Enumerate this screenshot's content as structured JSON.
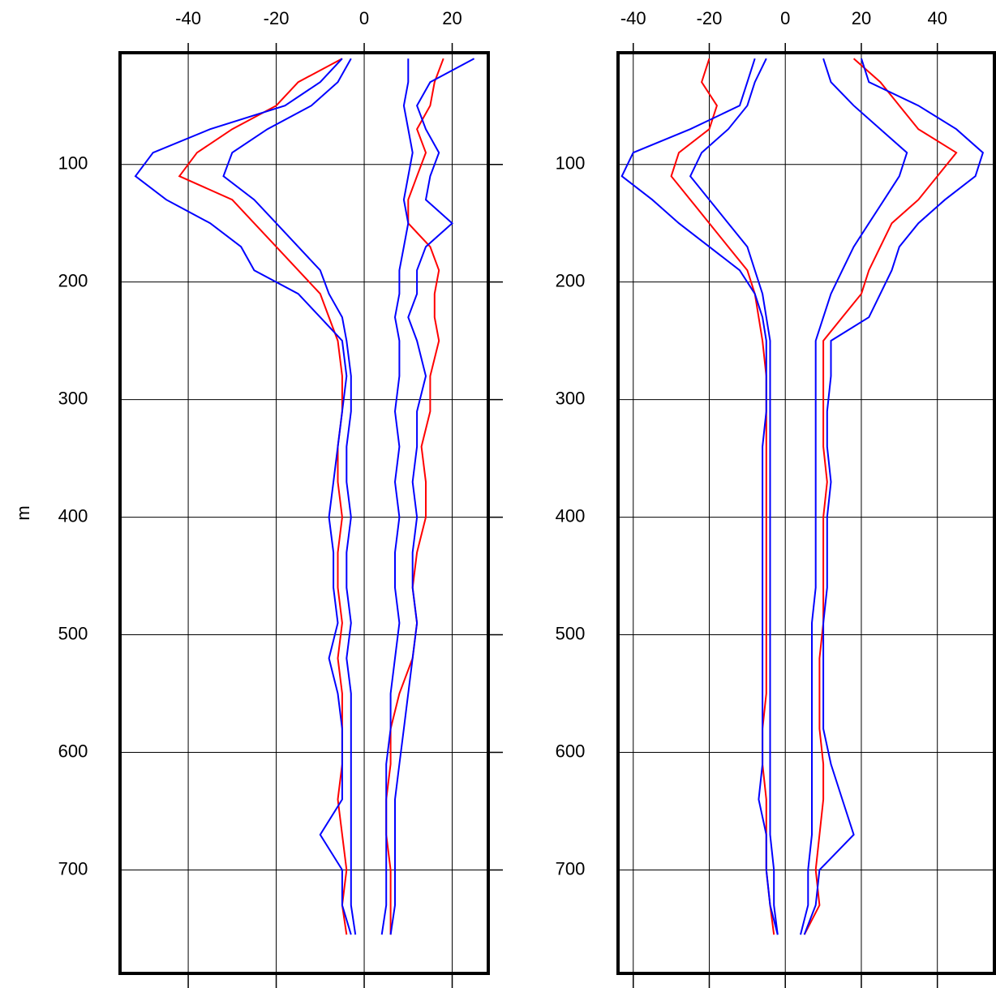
{
  "chart_data": [
    {
      "type": "line",
      "y_label": "m",
      "xlim": [
        -55.5,
        28.2
      ],
      "xticks": [
        -40,
        -20,
        0,
        20
      ],
      "ylim": [
        5,
        788
      ],
      "yticks": [
        100,
        200,
        300,
        400,
        500,
        600,
        700
      ],
      "y_inverted": true,
      "grid": true,
      "y": [
        10,
        30,
        50,
        70,
        90,
        110,
        130,
        150,
        170,
        190,
        210,
        230,
        250,
        280,
        310,
        340,
        370,
        400,
        430,
        460,
        490,
        520,
        550,
        580,
        610,
        640,
        670,
        700,
        730,
        755
      ],
      "series": [
        {
          "color": "#ff0000",
          "values": [
            -5,
            -15,
            -20,
            -30,
            -38,
            -42,
            -30,
            -25,
            -20,
            -15,
            -10,
            -8,
            -6,
            -5,
            -5,
            -6,
            -6,
            -5,
            -6,
            -6,
            -5,
            -6,
            -5,
            -5,
            -5,
            -6,
            -5,
            -4,
            -5,
            -4
          ]
        },
        {
          "color": "#ff0000",
          "values": [
            18,
            16,
            15,
            12,
            14,
            12,
            10,
            10,
            15,
            17,
            16,
            16,
            17,
            15,
            15,
            13,
            14,
            14,
            12,
            11,
            12,
            11,
            8,
            6,
            6,
            5,
            5,
            6,
            6,
            6
          ]
        },
        {
          "color": "#0000ff",
          "values": [
            -5,
            -10,
            -18,
            -35,
            -48,
            -52,
            -45,
            -35,
            -28,
            -25,
            -15,
            -10,
            -5,
            -4,
            -5,
            -6,
            -7,
            -8,
            -7,
            -7,
            -6,
            -8,
            -6,
            -5,
            -5,
            -5,
            -10,
            -5,
            -5,
            -3
          ]
        },
        {
          "color": "#0000ff",
          "values": [
            25,
            15,
            12,
            14,
            17,
            15,
            14,
            20,
            14,
            12,
            12,
            10,
            12,
            14,
            12,
            12,
            11,
            12,
            11,
            11,
            12,
            11,
            10,
            9,
            8,
            7,
            7,
            7,
            7,
            6
          ]
        },
        {
          "color": "#0000ff",
          "values": [
            -3,
            -6,
            -12,
            -22,
            -30,
            -32,
            -25,
            -20,
            -15,
            -10,
            -8,
            -5,
            -4,
            -3,
            -3,
            -4,
            -4,
            -3,
            -4,
            -4,
            -3,
            -4,
            -3,
            -3,
            -3,
            -3,
            -3,
            -3,
            -3,
            -2
          ]
        },
        {
          "color": "#0000ff",
          "values": [
            10,
            10,
            9,
            10,
            11,
            10,
            9,
            10,
            9,
            8,
            8,
            7,
            8,
            8,
            7,
            8,
            7,
            8,
            7,
            7,
            8,
            7,
            6,
            6,
            5,
            5,
            5,
            5,
            5,
            4
          ]
        }
      ]
    },
    {
      "type": "line",
      "xlim": [
        -44,
        55
      ],
      "xticks": [
        -40,
        -20,
        0,
        20,
        40
      ],
      "ylim": [
        5,
        788
      ],
      "yticks": [
        100,
        200,
        300,
        400,
        500,
        600,
        700
      ],
      "y_inverted": true,
      "grid": true,
      "y": [
        10,
        30,
        50,
        70,
        90,
        110,
        130,
        150,
        170,
        190,
        210,
        230,
        250,
        280,
        310,
        340,
        370,
        400,
        430,
        460,
        490,
        520,
        550,
        580,
        610,
        640,
        670,
        700,
        730,
        755
      ],
      "series": [
        {
          "color": "#ff0000",
          "values": [
            -20,
            -22,
            -18,
            -20,
            -28,
            -30,
            -25,
            -20,
            -15,
            -10,
            -8,
            -7,
            -6,
            -5,
            -5,
            -5,
            -5,
            -5,
            -5,
            -5,
            -5,
            -5,
            -5,
            -6,
            -6,
            -5,
            -5,
            -5,
            -4,
            -3
          ]
        },
        {
          "color": "#ff0000",
          "values": [
            18,
            25,
            30,
            35,
            45,
            40,
            35,
            28,
            25,
            22,
            20,
            15,
            10,
            10,
            10,
            10,
            11,
            10,
            10,
            10,
            10,
            9,
            9,
            9,
            10,
            10,
            9,
            8,
            9,
            5
          ]
        },
        {
          "color": "#0000ff",
          "values": [
            -8,
            -10,
            -12,
            -25,
            -40,
            -43,
            -35,
            -28,
            -20,
            -12,
            -8,
            -6,
            -5,
            -5,
            -5,
            -6,
            -6,
            -6,
            -6,
            -6,
            -6,
            -6,
            -6,
            -6,
            -6,
            -7,
            -5,
            -5,
            -4,
            -2
          ]
        },
        {
          "color": "#0000ff",
          "values": [
            20,
            22,
            35,
            45,
            52,
            50,
            42,
            35,
            30,
            28,
            25,
            22,
            12,
            12,
            11,
            11,
            12,
            11,
            11,
            11,
            10,
            10,
            10,
            10,
            12,
            15,
            18,
            9,
            8,
            5
          ]
        },
        {
          "color": "#0000ff",
          "values": [
            -5,
            -8,
            -10,
            -15,
            -22,
            -25,
            -20,
            -15,
            -10,
            -8,
            -6,
            -5,
            -4,
            -4,
            -4,
            -4,
            -4,
            -4,
            -4,
            -4,
            -4,
            -4,
            -4,
            -4,
            -4,
            -4,
            -4,
            -3,
            -3,
            -2
          ]
        },
        {
          "color": "#0000ff",
          "values": [
            10,
            12,
            18,
            25,
            32,
            30,
            26,
            22,
            18,
            15,
            12,
            10,
            8,
            8,
            8,
            8,
            8,
            8,
            8,
            8,
            7,
            7,
            7,
            7,
            7,
            7,
            7,
            6,
            6,
            4
          ]
        }
      ]
    }
  ]
}
